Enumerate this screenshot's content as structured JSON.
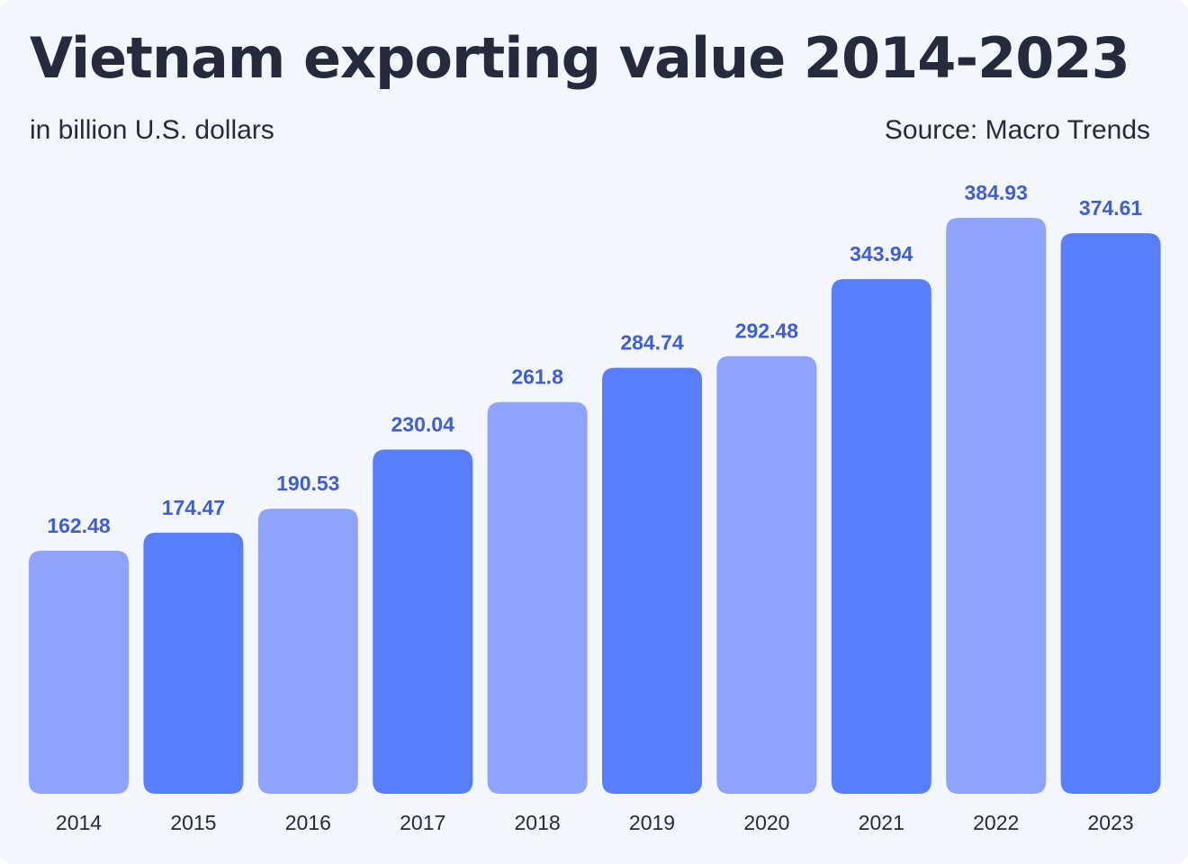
{
  "header": {
    "title": "Vietnam exporting value 2014-2023",
    "subtitle": "in billion U.S. dollars",
    "source": "Source: Macro Trends"
  },
  "colors": {
    "background": "#f3f6fd",
    "bar_light": "#8fa3fe",
    "bar_dark": "#587efe",
    "value_label": "#3f5fce",
    "text": "#262a3d"
  },
  "chart_data": {
    "type": "bar",
    "title": "Vietnam exporting value 2014-2023",
    "subtitle": "in billion U.S. dollars",
    "xlabel": "",
    "ylabel": "",
    "categories": [
      "2014",
      "2015",
      "2016",
      "2017",
      "2018",
      "2019",
      "2020",
      "2021",
      "2022",
      "2023"
    ],
    "values": [
      162.48,
      174.47,
      190.53,
      230.04,
      261.8,
      284.74,
      292.48,
      343.94,
      384.93,
      374.61
    ],
    "value_labels": [
      "162.48",
      "174.47",
      "190.53",
      "230.04",
      "261.8",
      "284.74",
      "292.48",
      "343.94",
      "384.93",
      "374.61"
    ],
    "bar_colors": [
      "#8fa3fe",
      "#587efe",
      "#8fa3fe",
      "#587efe",
      "#8fa3fe",
      "#587efe",
      "#8fa3fe",
      "#587efe",
      "#8fa3fe",
      "#587efe"
    ],
    "ylim": [
      0,
      384.93
    ],
    "grid": false,
    "legend": "none"
  }
}
